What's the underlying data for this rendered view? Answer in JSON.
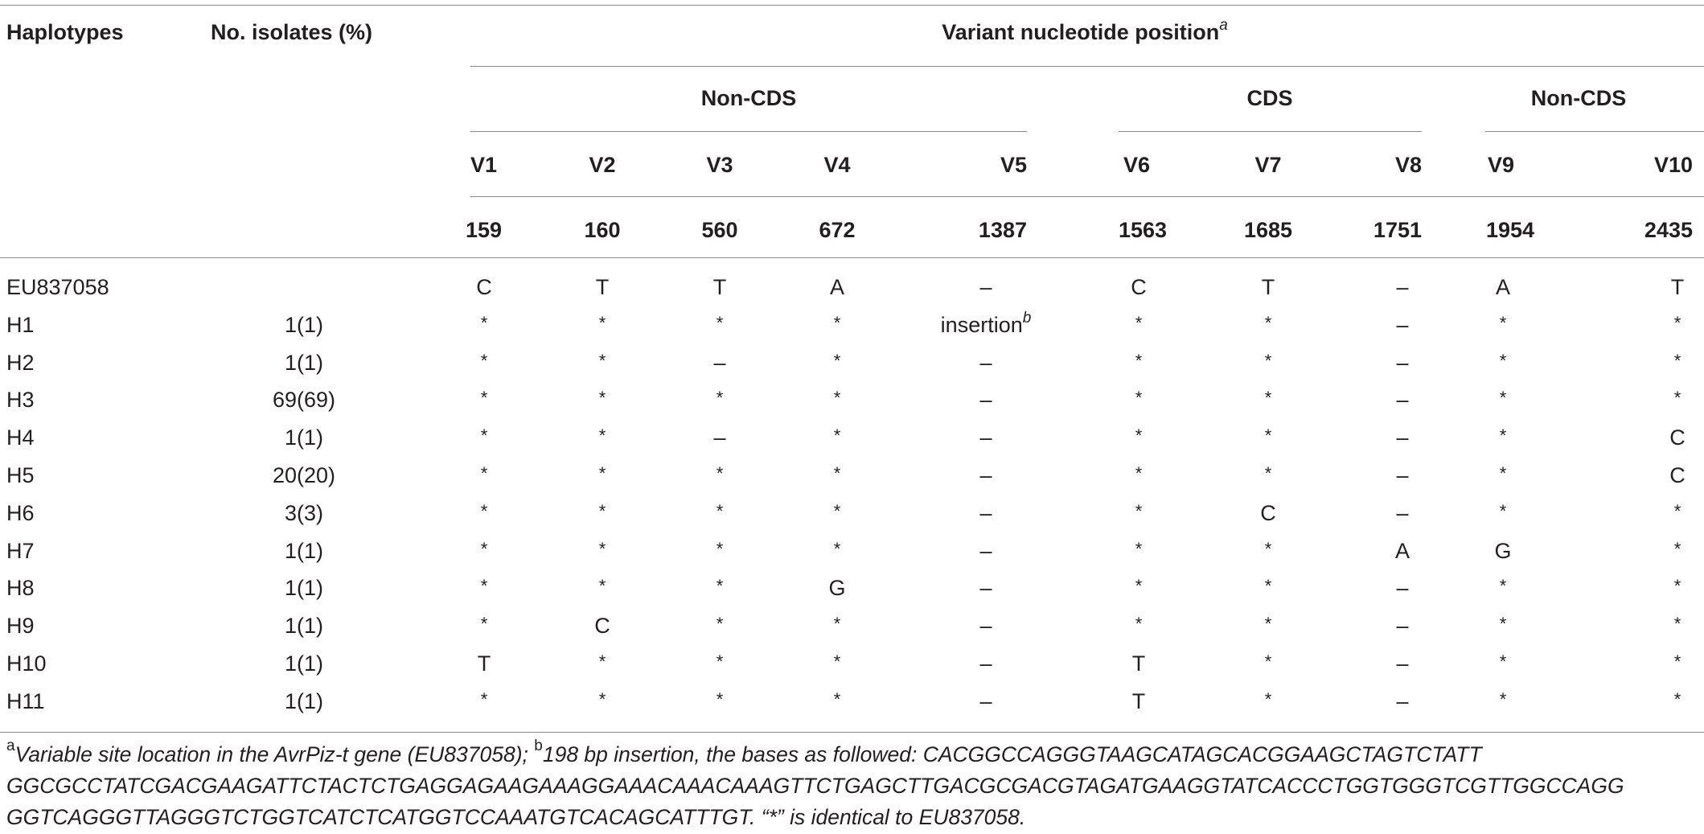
{
  "headers": {
    "haplotypes": "Haplotypes",
    "isolates": "No. isolates (%)",
    "variant_title": "Variant nucleotide position",
    "variant_sup": "a",
    "groups": [
      "Non-CDS",
      "CDS",
      "Non-CDS"
    ],
    "variants": [
      "V1",
      "V2",
      "V3",
      "V4",
      "V5",
      "V6",
      "V7",
      "V8",
      "V9",
      "V10"
    ],
    "positions": [
      "159",
      "160",
      "560",
      "672",
      "1387",
      "1563",
      "1685",
      "1751",
      "1954",
      "2435"
    ]
  },
  "rows": [
    {
      "hap": "EU837058",
      "iso": "",
      "vals": [
        "C",
        "T",
        "T",
        "A",
        "–",
        "C",
        "T",
        "–",
        "A",
        "T"
      ]
    },
    {
      "hap": "H1",
      "iso": "1(1)",
      "vals": [
        "*",
        "*",
        "*",
        "*",
        "insertion",
        "*",
        "*",
        "–",
        "*",
        "*"
      ]
    },
    {
      "hap": "H2",
      "iso": "1(1)",
      "vals": [
        "*",
        "*",
        "–",
        "*",
        "–",
        "*",
        "*",
        "–",
        "*",
        "*"
      ]
    },
    {
      "hap": "H3",
      "iso": "69(69)",
      "vals": [
        "*",
        "*",
        "*",
        "*",
        "–",
        "*",
        "*",
        "–",
        "*",
        "*"
      ]
    },
    {
      "hap": "H4",
      "iso": "1(1)",
      "vals": [
        "*",
        "*",
        "–",
        "*",
        "–",
        "*",
        "*",
        "–",
        "*",
        "C"
      ]
    },
    {
      "hap": "H5",
      "iso": "20(20)",
      "vals": [
        "*",
        "*",
        "*",
        "*",
        "–",
        "*",
        "*",
        "–",
        "*",
        "C"
      ]
    },
    {
      "hap": "H6",
      "iso": "3(3)",
      "vals": [
        "*",
        "*",
        "*",
        "*",
        "–",
        "*",
        "C",
        "–",
        "*",
        "*"
      ]
    },
    {
      "hap": "H7",
      "iso": "1(1)",
      "vals": [
        "*",
        "*",
        "*",
        "*",
        "–",
        "*",
        "*",
        "A",
        "G",
        "*"
      ]
    },
    {
      "hap": "H8",
      "iso": "1(1)",
      "vals": [
        "*",
        "*",
        "*",
        "G",
        "–",
        "*",
        "*",
        "–",
        "*",
        "*"
      ]
    },
    {
      "hap": "H9",
      "iso": "1(1)",
      "vals": [
        "*",
        "C",
        "*",
        "*",
        "–",
        "*",
        "*",
        "–",
        "*",
        "*"
      ]
    },
    {
      "hap": "H10",
      "iso": "1(1)",
      "vals": [
        "T",
        "*",
        "*",
        "*",
        "–",
        "T",
        "*",
        "–",
        "*",
        "*"
      ]
    },
    {
      "hap": "H11",
      "iso": "1(1)",
      "vals": [
        "*",
        "*",
        "*",
        "*",
        "–",
        "T",
        "*",
        "–",
        "*",
        "*"
      ]
    }
  ],
  "insertion_sup": "b",
  "footnote": {
    "a_mark": "a",
    "a_text": "Variable site location in the AvrPiz-t gene (EU837058); ",
    "b_mark": "b",
    "b_text": "198 bp insertion, the bases as followed: CACGGCCAGGGTAAGCATAGCACGGAAGCTAGTCTATT GGCGCCTATCGACGAAGATTCTACTCTGAGGAGAAGAAAGGAAACAAACAAAGTTCTGAGCTTGACGCGACGTAGATGAAGGTATCACCCTGGTGGGTCGTTGGCCAGG GGTCAGGGTTAGGGTCTGGTCATCTCATGGTCCAAATGTCACAGCATTTGT. “*” is identical to EU837058."
  }
}
